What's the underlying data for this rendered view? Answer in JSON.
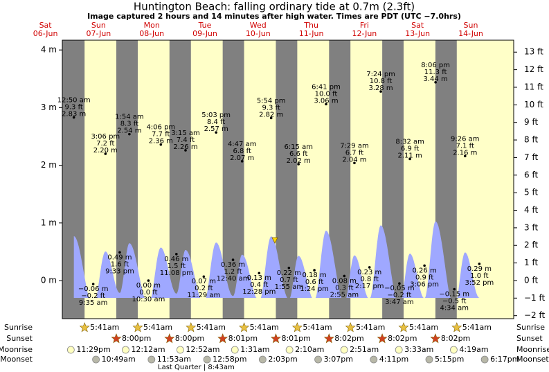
{
  "chart_data": {
    "type": "tide",
    "title": "Huntington Beach: falling  ordinary tide at 0.7m (2.3ft)",
    "subtitle": "Image captured 2 hours and 14 minutes after high water. Times are PDT (UTC −7.0hrs)",
    "ylim": [
      -0.66,
      4.17
    ],
    "yticks": [
      {
        "value": 4,
        "label": "4 m"
      },
      {
        "value": 3,
        "label": "3 m"
      },
      {
        "value": 2,
        "label": "2 m"
      },
      {
        "value": 1,
        "label": "1 m"
      },
      {
        "value": 0,
        "label": "0 m"
      }
    ],
    "y2lim": [
      -2.17,
      13.68
    ],
    "y2ticks": [
      {
        "value": 13,
        "label": "13 ft"
      },
      {
        "value": 12,
        "label": "12 ft"
      },
      {
        "value": 11,
        "label": "11 ft"
      },
      {
        "value": 10,
        "label": "10 ft"
      },
      {
        "value": 9,
        "label": "9 ft"
      },
      {
        "value": 8,
        "label": "8 ft"
      },
      {
        "value": 7,
        "label": "7 ft"
      },
      {
        "value": 6,
        "label": "6 ft"
      },
      {
        "value": 5,
        "label": "5 ft"
      },
      {
        "value": 4,
        "label": "4 ft"
      },
      {
        "value": 3,
        "label": "3 ft"
      },
      {
        "value": 2,
        "label": "2 ft"
      },
      {
        "value": 1,
        "label": "1 ft"
      },
      {
        "value": 0,
        "label": "0 ft"
      },
      {
        "value": -1,
        "label": "−1 ft"
      },
      {
        "value": -2,
        "label": "−2 ft"
      }
    ],
    "row_labels": [
      "Sunrise",
      "Sunset",
      "Moonrise",
      "Moonset"
    ],
    "moon_phase": "Last Quarter | 8:43am",
    "color": "#9fa8ff",
    "days": [
      {
        "weekday": "Sat",
        "date": "06-Jun",
        "moonrise": "11:29pm",
        "tides": []
      },
      {
        "weekday": "Sun",
        "date": "07-Jun",
        "sunrise": "5:41am",
        "sunset": "8:00pm",
        "moonset": "10:49am",
        "tides": [
          {
            "time": "12:50 am",
            "m": 2.83,
            "m_label": "2.83 m",
            "ft": 9.3,
            "ft_label": "9.3 ft"
          },
          {
            "time": "9:35 am",
            "m": -0.06,
            "m_label": "−0.06 m",
            "ft": -0.2,
            "ft_label": "−0.2 ft"
          },
          {
            "time": "3:06 pm",
            "m": 2.2,
            "m_label": "2.20 m",
            "ft": 7.2,
            "ft_label": "7.2 ft"
          },
          {
            "time": "9:33 pm",
            "m": 0.49,
            "m_label": "0.49 m",
            "ft": 1.6,
            "ft_label": "1.6 ft"
          }
        ]
      },
      {
        "weekday": "Mon",
        "date": "08-Jun",
        "sunrise": "5:41am",
        "sunset": "8:00pm",
        "moonrise": "12:12am",
        "moonset": "11:53am",
        "tides": [
          {
            "time": "1:54 am",
            "m": 2.54,
            "m_label": "2.54 m",
            "ft": 8.3,
            "ft_label": "8.3 ft"
          },
          {
            "time": "10:30 am",
            "m": 0.0,
            "m_label": "0.00 m",
            "ft": 0.0,
            "ft_label": "0.0 ft"
          },
          {
            "time": "4:06 pm",
            "m": 2.36,
            "m_label": "2.36 m",
            "ft": 7.7,
            "ft_label": "7.7 ft"
          },
          {
            "time": "11:08 pm",
            "m": 0.46,
            "m_label": "0.46 m",
            "ft": 1.5,
            "ft_label": "1.5 ft"
          }
        ]
      },
      {
        "weekday": "Tue",
        "date": "09-Jun",
        "sunrise": "5:41am",
        "sunset": "8:01pm",
        "moonrise": "12:52am",
        "moonset": "12:58pm",
        "tides": [
          {
            "time": "3:15 am",
            "m": 2.26,
            "m_label": "2.26 m",
            "ft": 7.4,
            "ft_label": "7.4 ft"
          },
          {
            "time": "11:29 am",
            "m": 0.07,
            "m_label": "0.07 m",
            "ft": 0.2,
            "ft_label": "0.2 ft"
          },
          {
            "time": "5:03 pm",
            "m": 2.57,
            "m_label": "2.57 m",
            "ft": 8.4,
            "ft_label": "8.4 ft"
          }
        ]
      },
      {
        "weekday": "Wed",
        "date": "10-Jun",
        "sunrise": "5:41am",
        "sunset": "8:01pm",
        "moonrise": "1:31am",
        "moonset": "2:03pm",
        "tides": [
          {
            "time": "12:40 am",
            "m": 0.36,
            "m_label": "0.36 m",
            "ft": 1.2,
            "ft_label": "1.2 ft"
          },
          {
            "time": "4:47 am",
            "m": 2.07,
            "m_label": "2.07 m",
            "ft": 6.8,
            "ft_label": "6.8 ft"
          },
          {
            "time": "12:28 pm",
            "m": 0.13,
            "m_label": "0.13 m",
            "ft": 0.4,
            "ft_label": "0.4 ft"
          },
          {
            "time": "5:54 pm",
            "m": 2.82,
            "m_label": "2.82 m",
            "ft": 9.3,
            "ft_label": "9.3 ft"
          }
        ]
      },
      {
        "weekday": "Thu",
        "date": "11-Jun",
        "sunrise": "5:41am",
        "sunset": "8:02pm",
        "moonrise": "2:10am",
        "moonset": "3:07pm",
        "tides": [
          {
            "time": "1:55 am",
            "m": 0.22,
            "m_label": "0.22 m",
            "ft": 0.7,
            "ft_label": "0.7 ft"
          },
          {
            "time": "6:15 am",
            "m": 2.02,
            "m_label": "2.02 m",
            "ft": 6.6,
            "ft_label": "6.6 ft"
          },
          {
            "time": "1:24 pm",
            "m": 0.18,
            "m_label": "0.18 m",
            "ft": 0.6,
            "ft_label": "0.6 ft"
          },
          {
            "time": "6:41 pm",
            "m": 3.06,
            "m_label": "3.06 m",
            "ft": 10.0,
            "ft_label": "10.0 ft"
          }
        ]
      },
      {
        "weekday": "Fri",
        "date": "12-Jun",
        "sunrise": "5:41am",
        "sunset": "8:02pm",
        "moonrise": "2:51am",
        "moonset": "4:11pm",
        "tides": [
          {
            "time": "2:55 am",
            "m": 0.08,
            "m_label": "0.08 m",
            "ft": 0.3,
            "ft_label": "0.3 ft"
          },
          {
            "time": "7:29 am",
            "m": 2.04,
            "m_label": "2.04 m",
            "ft": 6.7,
            "ft_label": "6.7 ft"
          },
          {
            "time": "2:17 pm",
            "m": 0.23,
            "m_label": "0.23 m",
            "ft": 0.8,
            "ft_label": "0.8 ft"
          },
          {
            "time": "7:24 pm",
            "m": 3.28,
            "m_label": "3.28 m",
            "ft": 10.8,
            "ft_label": "10.8 ft"
          }
        ]
      },
      {
        "weekday": "Sat",
        "date": "13-Jun",
        "sunrise": "5:41am",
        "sunset": "8:02pm",
        "moonrise": "3:33am",
        "moonset": "5:15pm",
        "tides": [
          {
            "time": "3:47 am",
            "m": -0.05,
            "m_label": "−0.05 m",
            "ft": -0.2,
            "ft_label": "−0.2 ft"
          },
          {
            "time": "8:32 am",
            "m": 2.11,
            "m_label": "2.11 m",
            "ft": 6.9,
            "ft_label": "6.9 ft"
          },
          {
            "time": "3:06 pm",
            "m": 0.26,
            "m_label": "0.26 m",
            "ft": 0.9,
            "ft_label": "0.9 ft"
          },
          {
            "time": "8:06 pm",
            "m": 3.44,
            "m_label": "3.44 m",
            "ft": 11.3,
            "ft_label": "11.3 ft"
          }
        ]
      },
      {
        "weekday": "Sun",
        "date": "14-Jun",
        "sunrise": "5:41am",
        "moonrise": "4:19am",
        "moonset": "6:17pm",
        "tides": [
          {
            "time": "4:34 am",
            "m": -0.15,
            "m_label": "−0.15 m",
            "ft": -0.5,
            "ft_label": "−0.5 ft"
          },
          {
            "time": "9:26 am",
            "m": 2.16,
            "m_label": "2.16 m",
            "ft": 7.1,
            "ft_label": "7.1 ft"
          },
          {
            "time": "3:52 pm",
            "m": 0.29,
            "m_label": "0.29 m",
            "ft": 1.0,
            "ft_label": "1.0 ft"
          }
        ]
      }
    ]
  }
}
